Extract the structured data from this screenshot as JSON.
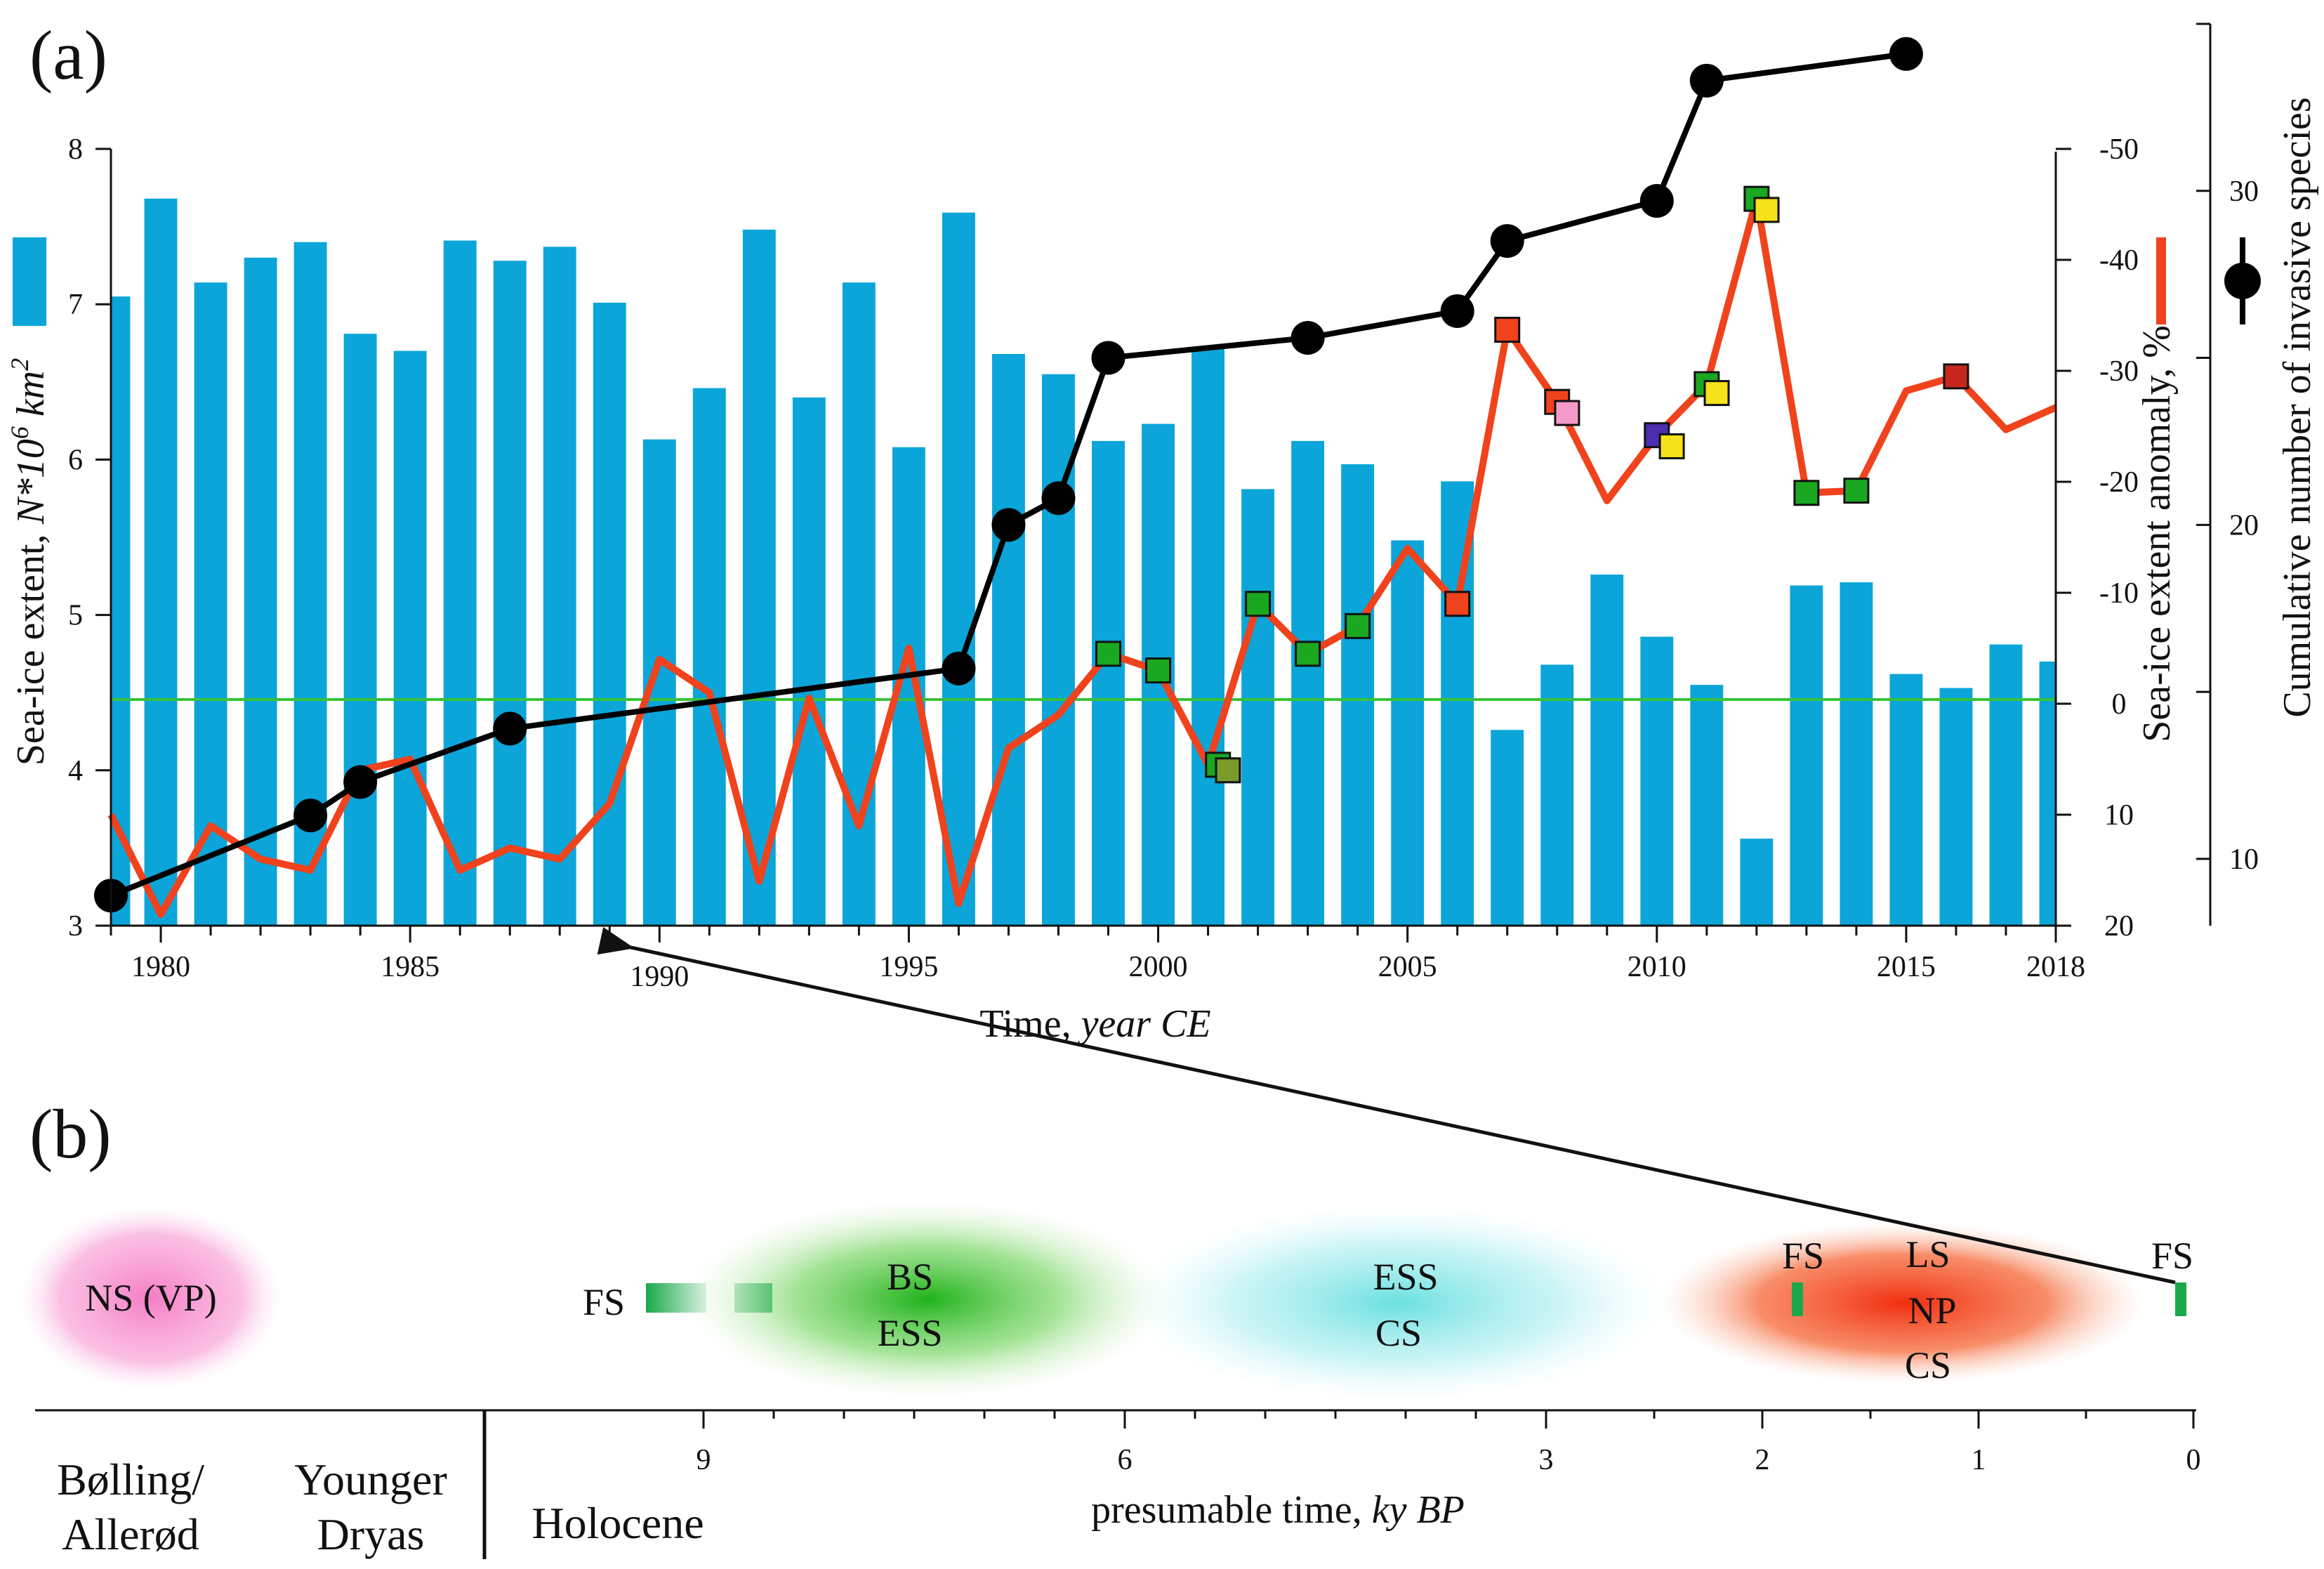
{
  "panels": {
    "a_label": "(a)",
    "b_label": "(b)"
  },
  "chart_data": [
    {
      "type": "bar",
      "panel": "(a)",
      "xlabel_main": "Time, ",
      "xlabel_italic": "year CE",
      "x_ticks": [
        "1980",
        "1985",
        "1990",
        "1995",
        "2000",
        "2005",
        "2010",
        "2015",
        "2018"
      ],
      "xlim": [
        1979,
        2018
      ],
      "y_left": {
        "label_main": "Sea-ice extent, ",
        "label_italic": "N*10",
        "label_sup": "6",
        "label_tail": " km",
        "label_sup2": "2",
        "ticks": [
          "3",
          "4",
          "5",
          "6",
          "7",
          "8"
        ],
        "ylim": [
          3,
          8
        ]
      },
      "y_right1": {
        "label": "Sea-ice extent anomaly, %",
        "ticks": [
          "-50",
          "-40",
          "-30",
          "-20",
          "-10",
          "0",
          "10",
          "20"
        ],
        "ylim": [
          20,
          -50
        ]
      },
      "y_right2": {
        "label": "Cumulative number of invasive species",
        "ticks": [
          "10",
          "20",
          "30"
        ],
        "ylim": [
          8,
          35
        ]
      },
      "colors": {
        "bars": "#0ba5d9",
        "anomaly_line": "#f0421c",
        "species_line": "#000000",
        "zero_line": "#36c23a"
      },
      "series": [
        {
          "series_kind": "bars",
          "axis": "left",
          "x": [
            1979,
            1980,
            1981,
            1982,
            1983,
            1984,
            1985,
            1986,
            1987,
            1988,
            1989,
            1990,
            1991,
            1992,
            1993,
            1994,
            1995,
            1996,
            1997,
            1998,
            1999,
            2000,
            2001,
            2002,
            2003,
            2004,
            2005,
            2006,
            2007,
            2008,
            2009,
            2010,
            2011,
            2012,
            2013,
            2014,
            2015,
            2016,
            2017,
            2018
          ],
          "values": [
            7.05,
            7.68,
            7.14,
            7.3,
            7.4,
            6.81,
            6.7,
            7.41,
            7.28,
            7.37,
            7.01,
            6.13,
            6.46,
            7.48,
            6.4,
            7.14,
            6.08,
            7.59,
            6.68,
            6.55,
            6.12,
            6.23,
            6.72,
            5.81,
            6.12,
            5.97,
            5.48,
            5.86,
            4.26,
            4.68,
            5.26,
            4.86,
            4.55,
            3.56,
            5.19,
            5.21,
            4.62,
            4.53,
            4.81,
            4.7
          ]
        },
        {
          "series_kind": "anomaly",
          "axis": "right1",
          "x": [
            1979,
            1980,
            1981,
            1982,
            1983,
            1984,
            1985,
            1986,
            1987,
            1988,
            1989,
            1990,
            1991,
            1992,
            1993,
            1994,
            1995,
            1996,
            1997,
            1998,
            1999,
            2000,
            2001,
            2002,
            2003,
            2004,
            2005,
            2006,
            2007,
            2008,
            2009,
            2010,
            2011,
            2012,
            2013,
            2014,
            2015,
            2016,
            2017,
            2018
          ],
          "values": [
            10,
            19,
            11,
            14,
            15,
            6,
            5,
            15,
            13,
            14,
            9,
            -4,
            -1,
            16,
            -0.5,
            11,
            -5,
            18,
            4,
            1,
            -4.5,
            -3,
            5.5,
            -9,
            -4.5,
            -7,
            -14,
            -9,
            -33.7,
            -27.2,
            -18.3,
            -24.2,
            -28.8,
            -45.5,
            -19,
            -19.2,
            -28.2,
            -29.5,
            -24.7,
            -26.7
          ]
        },
        {
          "series_kind": "species",
          "axis": "right2",
          "x": [
            1979,
            1983,
            1984,
            1987,
            1996,
            1997,
            1998,
            1999,
            2003,
            2006,
            2007,
            2010,
            2011,
            2015
          ],
          "values": [
            8.9,
            11.3,
            12.3,
            13.9,
            15.7,
            20.0,
            20.8,
            25.0,
            25.6,
            26.4,
            28.5,
            29.7,
            33.3,
            34.1
          ]
        }
      ],
      "markers": [
        {
          "x": 1999,
          "y": -4.5,
          "color": "#1aa821"
        },
        {
          "x": 2000,
          "y": -3,
          "color": "#1aa821"
        },
        {
          "x": 2001.2,
          "y": 5.5,
          "color": "#1aa821"
        },
        {
          "x": 2001.4,
          "y": 6,
          "color": "#7a9a2a"
        },
        {
          "x": 2002,
          "y": -9,
          "color": "#1aa821"
        },
        {
          "x": 2003,
          "y": -4.5,
          "color": "#1aa821"
        },
        {
          "x": 2004,
          "y": -7,
          "color": "#1aa821"
        },
        {
          "x": 2006,
          "y": -9,
          "color": "#f0421c"
        },
        {
          "x": 2007,
          "y": -33.7,
          "color": "#f0421c"
        },
        {
          "x": 2008,
          "y": -27.2,
          "color": "#f0421c"
        },
        {
          "x": 2008.2,
          "y": -26.2,
          "color": "#f59ac8"
        },
        {
          "x": 2010,
          "y": -24.2,
          "color": "#4a2db0"
        },
        {
          "x": 2010.3,
          "y": -23.2,
          "color": "#f5e21b"
        },
        {
          "x": 2011,
          "y": -28.8,
          "color": "#1aa821"
        },
        {
          "x": 2011.2,
          "y": -28.0,
          "color": "#f5e21b"
        },
        {
          "x": 2012,
          "y": -45.5,
          "color": "#1aa821"
        },
        {
          "x": 2012.2,
          "y": -44.5,
          "color": "#f5e21b"
        },
        {
          "x": 2013,
          "y": -19,
          "color": "#1aa821"
        },
        {
          "x": 2014,
          "y": -19.2,
          "color": "#1aa821"
        },
        {
          "x": 2016,
          "y": -29.5,
          "color": "#c8261a"
        }
      ]
    },
    {
      "type": "timeline",
      "panel": "(b)",
      "xlabel_main": "presumable time, ",
      "xlabel_italic": "ky BP",
      "ticks": [
        "9",
        "6",
        "3",
        "2",
        "1",
        "0"
      ],
      "periods": [
        "Bølling/",
        "Allerød",
        "Younger",
        "Dryas",
        "Holocene"
      ],
      "regions": [
        {
          "lines": [
            "NS (VP)"
          ],
          "color": "#f28ac9"
        },
        {
          "lines": [
            "BS",
            "ESS"
          ],
          "color": "#35c227"
        },
        {
          "lines": [
            "ESS",
            "CS"
          ],
          "color": "#7de2e4"
        },
        {
          "lines": [
            "LS",
            "NP",
            "CS"
          ],
          "color": "#f5461c"
        }
      ],
      "fs_labels": [
        "FS",
        "FS",
        "FS"
      ],
      "colors": {
        "fs_marker": "#1aa84a"
      }
    }
  ]
}
